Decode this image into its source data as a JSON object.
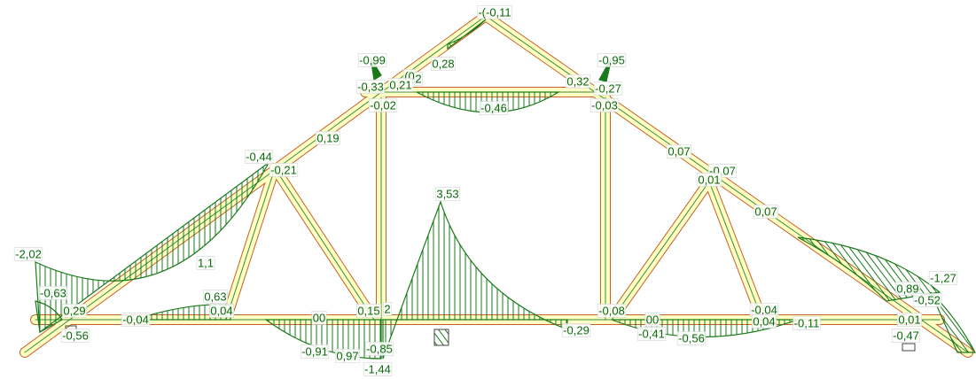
{
  "labels": [
    "-(-0,11",
    "0,28",
    "(0",
    "2",
    "-0,99",
    "-0,33",
    "0,21",
    "-0,02",
    "-0,46",
    "0,32",
    "-0,95",
    "-0,27",
    "-0,03",
    "0,19",
    "-0,44",
    "-0,21",
    "0,07",
    "-0,07",
    "0,01",
    "0,07",
    "3,53",
    "-2,02",
    "1,1",
    "-0,63",
    "0,29",
    "-0,56",
    "-0,04",
    "0,63",
    "0,04",
    "00",
    "0,15",
    "2",
    "-0,91",
    "0,97",
    "-0,85",
    "-1,44",
    "-0,29",
    "-0,08",
    "00",
    "-0,41",
    "-0,56",
    "-0,04",
    "0,04",
    "-0,11",
    "-1,27",
    "0,89",
    "-0,52",
    "0,01",
    "-0,47"
  ]
}
